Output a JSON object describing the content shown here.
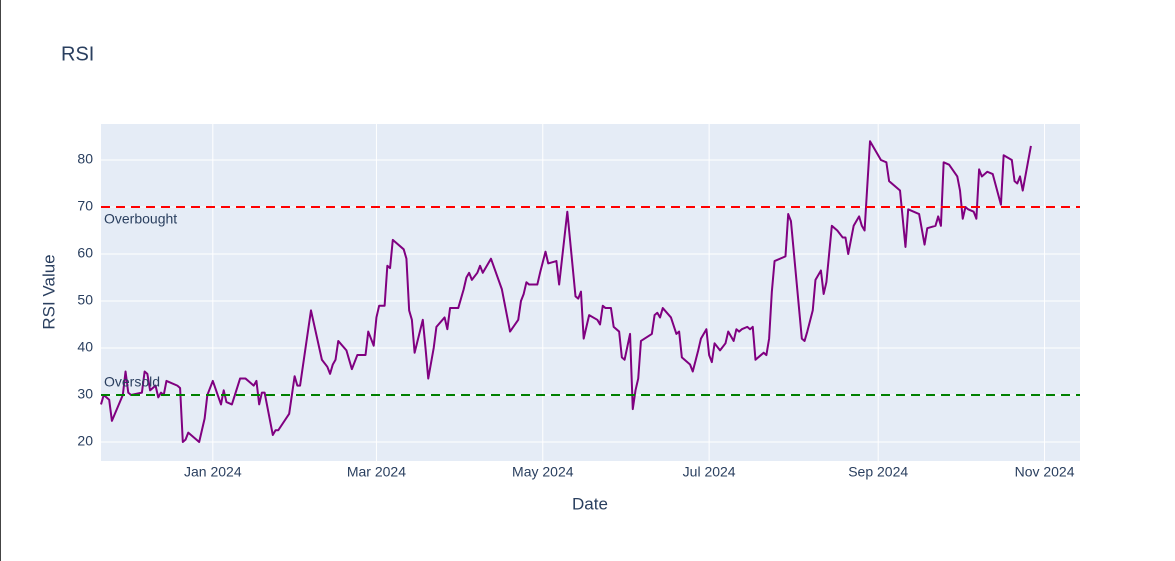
{
  "chart_data": {
    "type": "line",
    "title": "RSI",
    "x_label": "Date",
    "y_label": "RSI Value",
    "x": [
      "2023-11-21",
      "2023-11-22",
      "2023-11-24",
      "2023-11-25",
      "2023-11-29",
      "2023-11-30",
      "2023-12-01",
      "2023-12-02",
      "2023-12-06",
      "2023-12-07",
      "2023-12-08",
      "2023-12-09",
      "2023-12-11",
      "2023-12-12",
      "2023-12-13",
      "2023-12-14",
      "2023-12-15",
      "2023-12-19",
      "2023-12-20",
      "2023-12-21",
      "2023-12-22",
      "2023-12-23",
      "2023-12-27",
      "2023-12-29",
      "2023-12-30",
      "2024-01-01",
      "2024-01-04",
      "2024-01-05",
      "2024-01-06",
      "2024-01-08",
      "2024-01-11",
      "2024-01-13",
      "2024-01-16",
      "2024-01-17",
      "2024-01-18",
      "2024-01-19",
      "2024-01-20",
      "2024-01-23",
      "2024-01-24",
      "2024-01-25",
      "2024-01-29",
      "2024-01-31",
      "2024-02-01",
      "2024-02-02",
      "2024-02-06",
      "2024-02-10",
      "2024-02-12",
      "2024-02-13",
      "2024-02-14",
      "2024-02-15",
      "2024-02-16",
      "2024-02-19",
      "2024-02-21",
      "2024-02-23",
      "2024-02-26",
      "2024-02-27",
      "2024-02-29",
      "2024-03-01",
      "2024-03-02",
      "2024-03-04",
      "2024-03-05",
      "2024-03-06",
      "2024-03-07",
      "2024-03-11",
      "2024-03-12",
      "2024-03-13",
      "2024-03-14",
      "2024-03-15",
      "2024-03-18",
      "2024-03-19",
      "2024-03-20",
      "2024-03-22",
      "2024-03-23",
      "2024-03-26",
      "2024-03-27",
      "2024-03-28",
      "2024-03-31",
      "2024-04-02",
      "2024-04-03",
      "2024-04-04",
      "2024-04-05",
      "2024-04-07",
      "2024-04-08",
      "2024-04-09",
      "2024-04-12",
      "2024-04-16",
      "2024-04-19",
      "2024-04-22",
      "2024-04-23",
      "2024-04-24",
      "2024-04-25",
      "2024-04-26",
      "2024-04-29",
      "2024-04-30",
      "2024-05-02",
      "2024-05-03",
      "2024-05-06",
      "2024-05-07",
      "2024-05-10",
      "2024-05-13",
      "2024-05-14",
      "2024-05-15",
      "2024-05-16",
      "2024-05-18",
      "2024-05-21",
      "2024-05-22",
      "2024-05-23",
      "2024-05-24",
      "2024-05-26",
      "2024-05-27",
      "2024-05-29",
      "2024-05-30",
      "2024-05-31",
      "2024-06-02",
      "2024-06-03",
      "2024-06-04",
      "2024-06-05",
      "2024-06-06",
      "2024-06-10",
      "2024-06-11",
      "2024-06-12",
      "2024-06-13",
      "2024-06-14",
      "2024-06-17",
      "2024-06-19",
      "2024-06-20",
      "2024-06-21",
      "2024-06-24",
      "2024-06-25",
      "2024-06-27",
      "2024-06-28",
      "2024-06-30",
      "2024-07-01",
      "2024-07-02",
      "2024-07-03",
      "2024-07-05",
      "2024-07-07",
      "2024-07-08",
      "2024-07-10",
      "2024-07-11",
      "2024-07-12",
      "2024-07-13",
      "2024-07-15",
      "2024-07-16",
      "2024-07-17",
      "2024-07-18",
      "2024-07-20",
      "2024-07-21",
      "2024-07-22",
      "2024-07-23",
      "2024-07-24",
      "2024-07-25",
      "2024-07-29",
      "2024-07-30",
      "2024-07-31",
      "2024-08-04",
      "2024-08-05",
      "2024-08-06",
      "2024-08-08",
      "2024-08-09",
      "2024-08-11",
      "2024-08-12",
      "2024-08-13",
      "2024-08-15",
      "2024-08-17",
      "2024-08-19",
      "2024-08-20",
      "2024-08-21",
      "2024-08-23",
      "2024-08-25",
      "2024-08-26",
      "2024-08-27",
      "2024-08-29",
      "2024-09-02",
      "2024-09-04",
      "2024-09-05",
      "2024-09-09",
      "2024-09-11",
      "2024-09-12",
      "2024-09-16",
      "2024-09-18",
      "2024-09-19",
      "2024-09-22",
      "2024-09-23",
      "2024-09-24",
      "2024-09-25",
      "2024-09-27",
      "2024-09-30",
      "2024-10-01",
      "2024-10-02",
      "2024-10-03",
      "2024-10-04",
      "2024-10-06",
      "2024-10-07",
      "2024-10-08",
      "2024-10-09",
      "2024-10-11",
      "2024-10-13",
      "2024-10-16",
      "2024-10-17",
      "2024-10-20",
      "2024-10-21",
      "2024-10-22",
      "2024-10-23",
      "2024-10-24",
      "2024-10-27"
    ],
    "series": [
      {
        "name": "RSI",
        "color": "#800080",
        "values": [
          28,
          30,
          29,
          24.5,
          30,
          35,
          30.5,
          30,
          30.5,
          35,
          34.5,
          31,
          32,
          29.5,
          30.5,
          30,
          33,
          32,
          31.5,
          20,
          20.5,
          22,
          20,
          25,
          30,
          33,
          28,
          31,
          28.5,
          28,
          33.5,
          33.5,
          32,
          33,
          28,
          30.5,
          30.5,
          21.5,
          22.5,
          22.5,
          26,
          34,
          32,
          32,
          48,
          37.5,
          36,
          34.5,
          36.5,
          37.5,
          41.5,
          39.5,
          35.5,
          38.5,
          38.5,
          43.5,
          40.5,
          46.5,
          49,
          49,
          57.5,
          57,
          63,
          61,
          59,
          48,
          46,
          39,
          46,
          40,
          33.5,
          40,
          44.5,
          46.5,
          44,
          48.5,
          48.5,
          52.5,
          55,
          56,
          54.5,
          56,
          57.5,
          56,
          59,
          52.5,
          43.5,
          46,
          50,
          51.5,
          54,
          53.5,
          53.5,
          56,
          60.5,
          58,
          58.5,
          53.5,
          69,
          51,
          50.5,
          52,
          42,
          47,
          46,
          45,
          49,
          48.5,
          48.5,
          44.5,
          43.5,
          38,
          37.5,
          43,
          27,
          31,
          33.5,
          41.5,
          43,
          47,
          47.5,
          46.5,
          48.5,
          46.5,
          43,
          43.5,
          38,
          36.5,
          35,
          39.5,
          42,
          44,
          38.5,
          37,
          41,
          39.5,
          41,
          43.5,
          41.5,
          44,
          43.5,
          44,
          44.5,
          44,
          44.5,
          37.5,
          38.5,
          39,
          38.5,
          42,
          52,
          58.5,
          59.5,
          68.5,
          67,
          42,
          41.5,
          43.5,
          48,
          54.5,
          56.5,
          51.5,
          54,
          66,
          65,
          63.5,
          63.5,
          60,
          66,
          68,
          66,
          65,
          84,
          80,
          79.5,
          75.5,
          73.5,
          61.5,
          69.5,
          68.5,
          62,
          65.5,
          66,
          68,
          66,
          79.5,
          79,
          76.5,
          73.5,
          67.5,
          70,
          69.5,
          69,
          67.5,
          78,
          76.5,
          77.5,
          77,
          70.5,
          81,
          80,
          75.5,
          75,
          76.5,
          73.5,
          83
        ]
      }
    ],
    "hlines": [
      {
        "value": 70,
        "color": "#ff0000",
        "label": "Overbought",
        "label_position": "below"
      },
      {
        "value": 30,
        "color": "#008000",
        "label": "Oversold",
        "label_position": "above"
      }
    ],
    "xlim": [
      "2023-11-21",
      "2024-11-14"
    ],
    "xticks": [
      {
        "value": "2024-01-01",
        "label": "Jan 2024"
      },
      {
        "value": "2024-03-01",
        "label": "Mar 2024"
      },
      {
        "value": "2024-05-01",
        "label": "May 2024"
      },
      {
        "value": "2024-07-01",
        "label": "Jul 2024"
      },
      {
        "value": "2024-09-01",
        "label": "Sep 2024"
      },
      {
        "value": "2024-11-01",
        "label": "Nov 2024"
      }
    ],
    "ylim": [
      15.96,
      87.66
    ],
    "yticks": [
      20,
      30,
      40,
      50,
      60,
      70,
      80
    ],
    "grid": true
  }
}
